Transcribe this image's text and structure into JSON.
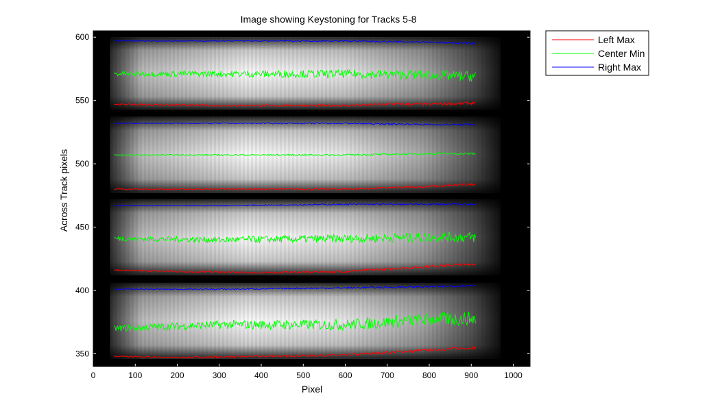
{
  "chart_data": {
    "type": "line",
    "title": "Image showing Keystoning for Tracks 5-8",
    "xlabel": "Pixel",
    "ylabel": "Across Track pixels",
    "xlim": [
      0,
      1040
    ],
    "ylim": [
      340,
      605
    ],
    "xticks": [
      0,
      100,
      200,
      300,
      400,
      500,
      600,
      700,
      800,
      900,
      1000
    ],
    "yticks": [
      350,
      400,
      450,
      500,
      550,
      600
    ],
    "x_start": 50,
    "x_end": 910,
    "background": "grayscale image of four bright horizontal tracks",
    "tracks": [
      {
        "y_bottom": 346,
        "y_top": 406
      },
      {
        "y_bottom": 412,
        "y_top": 472
      },
      {
        "y_bottom": 477,
        "y_top": 537
      },
      {
        "y_bottom": 543,
        "y_top": 600
      }
    ],
    "legend": {
      "position": "outside-top-right"
    },
    "series": [
      {
        "name": "Left Max",
        "color": "#ff0000",
        "segments": [
          {
            "x": [
              50,
              200,
              400,
              600,
              700,
              800,
              910
            ],
            "y": [
              348,
              347,
              348,
              349,
              351,
              353,
              355
            ],
            "noise": 0.8
          },
          {
            "x": [
              50,
              200,
              400,
              600,
              700,
              800,
              910
            ],
            "y": [
              416,
              415,
              414,
              415,
              417,
              419,
              421
            ],
            "noise": 0.8
          },
          {
            "x": [
              50,
              300,
              600,
              700,
              800,
              910
            ],
            "y": [
              480,
              480,
              480,
              481,
              482,
              484
            ],
            "noise": 0.6
          },
          {
            "x": [
              50,
              300,
              600,
              700,
              800,
              910
            ],
            "y": [
              547,
              546,
              546,
              547,
              547,
              548
            ],
            "noise": 0.8
          }
        ]
      },
      {
        "name": "Center Min",
        "color": "#00ff00",
        "segments": [
          {
            "x": [
              50,
              300,
              600,
              800,
              910
            ],
            "y": [
              370,
              373,
              373,
              377,
              378
            ],
            "noise": 4.0
          },
          {
            "x": [
              50,
              300,
              600,
              800,
              910
            ],
            "y": [
              441,
              440,
              441,
              442,
              442
            ],
            "noise": 3.0
          },
          {
            "x": [
              50,
              300,
              600,
              800,
              910
            ],
            "y": [
              507,
              507,
              507,
              508,
              508
            ],
            "noise": 0.6
          },
          {
            "x": [
              50,
              300,
              600,
              800,
              910
            ],
            "y": [
              571,
              571,
              571,
              570,
              569
            ],
            "noise": 3.0
          }
        ]
      },
      {
        "name": "Right Max",
        "color": "#0000ff",
        "segments": [
          {
            "x": [
              50,
              300,
              600,
              800,
              910
            ],
            "y": [
              401,
              401,
              402,
              403,
              404
            ],
            "noise": 0.6
          },
          {
            "x": [
              50,
              300,
              600,
              800,
              910
            ],
            "y": [
              467,
              467,
              468,
              468,
              468
            ],
            "noise": 0.5
          },
          {
            "x": [
              50,
              300,
              600,
              800,
              910
            ],
            "y": [
              532,
              532,
              532,
              531,
              531
            ],
            "noise": 0.5
          },
          {
            "x": [
              50,
              300,
              600,
              800,
              910
            ],
            "y": [
              597,
              597,
              597,
              596,
              595
            ],
            "noise": 0.5
          }
        ]
      }
    ]
  }
}
